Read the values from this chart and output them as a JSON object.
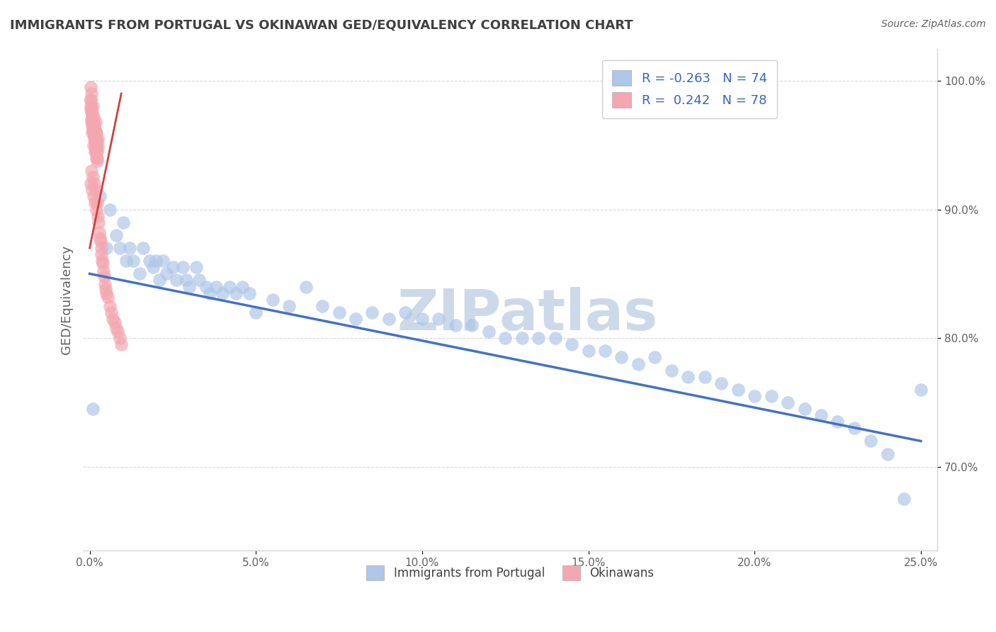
{
  "title": "IMMIGRANTS FROM PORTUGAL VS OKINAWAN GED/EQUIVALENCY CORRELATION CHART",
  "source_text": "Source: ZipAtlas.com",
  "xlabel": "",
  "ylabel": "GED/Equivalency",
  "xlim": [
    -0.002,
    0.255
  ],
  "ylim": [
    0.635,
    1.025
  ],
  "xticks": [
    0.0,
    0.05,
    0.1,
    0.15,
    0.2,
    0.25
  ],
  "xticklabels": [
    "0.0%",
    "5.0%",
    "10.0%",
    "15.0%",
    "20.0%",
    "25.0%"
  ],
  "yticks": [
    0.7,
    0.8,
    0.9,
    1.0
  ],
  "yticklabels": [
    "70.0%",
    "80.0%",
    "90.0%",
    "100.0%"
  ],
  "blue_scatter_color": "#aec6e8",
  "pink_scatter_color": "#f4a7b0",
  "blue_line_color": "#4472c4",
  "pink_line_color": "#d04040",
  "legend_blue_label": "Immigrants from Portugal",
  "legend_pink_label": "Okinawans",
  "legend_R_blue": "-0.263",
  "legend_N_blue": "74",
  "legend_R_pink": "0.242",
  "legend_N_pink": "78",
  "watermark": "ZIPatlas",
  "watermark_color": "#ccd9e8",
  "background_color": "#ffffff",
  "grid_color": "#d0d0d0",
  "title_color": "#404040",
  "label_color": "#606060",
  "blue_scatter_x": [
    0.001,
    0.003,
    0.005,
    0.006,
    0.008,
    0.009,
    0.01,
    0.011,
    0.012,
    0.013,
    0.015,
    0.016,
    0.018,
    0.019,
    0.02,
    0.021,
    0.022,
    0.023,
    0.025,
    0.026,
    0.028,
    0.029,
    0.03,
    0.032,
    0.033,
    0.035,
    0.036,
    0.038,
    0.04,
    0.042,
    0.044,
    0.046,
    0.048,
    0.05,
    0.055,
    0.06,
    0.065,
    0.07,
    0.075,
    0.08,
    0.085,
    0.09,
    0.095,
    0.1,
    0.105,
    0.11,
    0.115,
    0.12,
    0.125,
    0.13,
    0.135,
    0.14,
    0.145,
    0.15,
    0.155,
    0.16,
    0.165,
    0.17,
    0.175,
    0.18,
    0.185,
    0.19,
    0.195,
    0.2,
    0.205,
    0.21,
    0.215,
    0.22,
    0.225,
    0.23,
    0.235,
    0.24,
    0.245,
    0.25
  ],
  "blue_scatter_y": [
    0.745,
    0.91,
    0.87,
    0.9,
    0.88,
    0.87,
    0.89,
    0.86,
    0.87,
    0.86,
    0.85,
    0.87,
    0.86,
    0.855,
    0.86,
    0.845,
    0.86,
    0.85,
    0.855,
    0.845,
    0.855,
    0.845,
    0.84,
    0.855,
    0.845,
    0.84,
    0.835,
    0.84,
    0.835,
    0.84,
    0.835,
    0.84,
    0.835,
    0.82,
    0.83,
    0.825,
    0.84,
    0.825,
    0.82,
    0.815,
    0.82,
    0.815,
    0.82,
    0.815,
    0.815,
    0.81,
    0.81,
    0.805,
    0.8,
    0.8,
    0.8,
    0.8,
    0.795,
    0.79,
    0.79,
    0.785,
    0.78,
    0.785,
    0.775,
    0.77,
    0.77,
    0.765,
    0.76,
    0.755,
    0.755,
    0.75,
    0.745,
    0.74,
    0.735,
    0.73,
    0.72,
    0.71,
    0.675,
    0.76
  ],
  "pink_scatter_x": [
    0.0002,
    0.0003,
    0.0004,
    0.0005,
    0.0006,
    0.0007,
    0.0008,
    0.0009,
    0.001,
    0.0011,
    0.0012,
    0.0013,
    0.0014,
    0.0015,
    0.0016,
    0.0017,
    0.0018,
    0.0019,
    0.002,
    0.0021,
    0.0022,
    0.0023,
    0.0024,
    0.0025,
    0.0003,
    0.0005,
    0.0007,
    0.0009,
    0.0011,
    0.0013,
    0.0015,
    0.0017,
    0.0019,
    0.0021,
    0.0023,
    0.0004,
    0.0006,
    0.0008,
    0.001,
    0.0012,
    0.0014,
    0.0016,
    0.0018,
    0.002,
    0.0022,
    0.0004,
    0.0006,
    0.0008,
    0.001,
    0.0012,
    0.0014,
    0.0016,
    0.0018,
    0.002,
    0.0022,
    0.0024,
    0.0026,
    0.0028,
    0.003,
    0.0032,
    0.0034,
    0.0036,
    0.0038,
    0.004,
    0.0042,
    0.0044,
    0.0046,
    0.0048,
    0.005,
    0.0055,
    0.006,
    0.0065,
    0.007,
    0.0075,
    0.008,
    0.0085,
    0.009,
    0.0095
  ],
  "pink_scatter_y": [
    0.98,
    0.995,
    0.985,
    0.97,
    0.99,
    0.975,
    0.965,
    0.98,
    0.968,
    0.972,
    0.96,
    0.965,
    0.958,
    0.962,
    0.955,
    0.968,
    0.95,
    0.955,
    0.948,
    0.96,
    0.945,
    0.952,
    0.948,
    0.955,
    0.985,
    0.975,
    0.97,
    0.962,
    0.968,
    0.958,
    0.952,
    0.96,
    0.945,
    0.955,
    0.94,
    0.978,
    0.968,
    0.96,
    0.965,
    0.95,
    0.955,
    0.945,
    0.948,
    0.94,
    0.938,
    0.92,
    0.93,
    0.915,
    0.925,
    0.91,
    0.92,
    0.905,
    0.915,
    0.9,
    0.905,
    0.895,
    0.89,
    0.882,
    0.878,
    0.875,
    0.87,
    0.865,
    0.86,
    0.858,
    0.852,
    0.848,
    0.842,
    0.838,
    0.835,
    0.832,
    0.825,
    0.82,
    0.815,
    0.812,
    0.808,
    0.805,
    0.8,
    0.795
  ],
  "blue_trend_x": [
    0.0,
    0.25
  ],
  "blue_trend_y": [
    0.85,
    0.72
  ],
  "pink_trend_x": [
    0.0,
    0.0095
  ],
  "pink_trend_y": [
    0.87,
    0.99
  ]
}
